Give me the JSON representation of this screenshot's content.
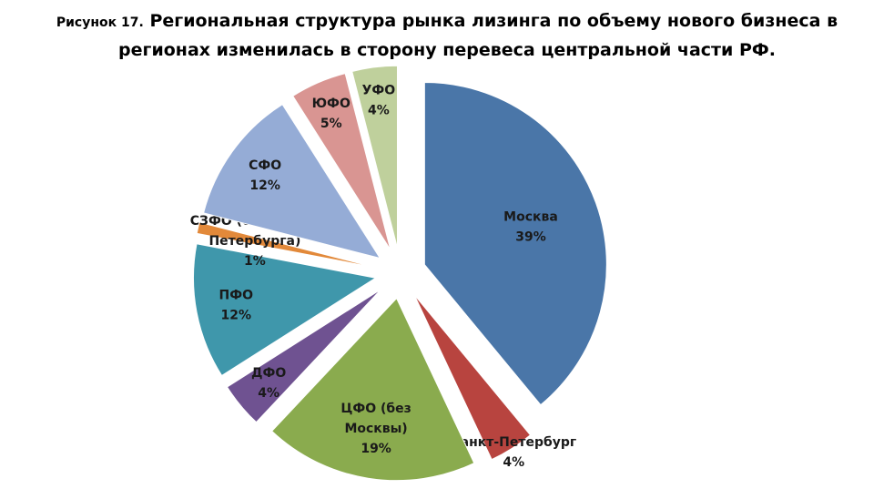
{
  "figure": {
    "prefix": "Рисунок 17.",
    "title_line1": "Региональная структура рынка лизинга по объему нового бизнеса в",
    "title_line2": "регионах изменилась в сторону перевеса центральной части РФ."
  },
  "chart_data": {
    "type": "pie",
    "exploded": true,
    "slices": [
      {
        "label": "Москва",
        "value": 39,
        "value_text": "39%",
        "color": "#4a76a8"
      },
      {
        "label": "Санкт-Петербург",
        "value": 4,
        "value_text": "4%",
        "color": "#b8443f"
      },
      {
        "label": "ЦФО (без Москвы)",
        "value": 19,
        "value_text": "19%",
        "color": "#8aab4e"
      },
      {
        "label": "ДФО",
        "value": 4,
        "value_text": "4%",
        "color": "#6f5291"
      },
      {
        "label": "ПФО",
        "value": 12,
        "value_text": "12%",
        "color": "#3f97ab"
      },
      {
        "label": "СЗФО (без Санкт-Петербурга)",
        "value": 1,
        "value_text": "1%",
        "color": "#e2893a"
      },
      {
        "label": "СФО",
        "value": 12,
        "value_text": "12%",
        "color": "#95acd6"
      },
      {
        "label": "ЮФО",
        "value": 5,
        "value_text": "5%",
        "color": "#d99592"
      },
      {
        "label": "УФО",
        "value": 4,
        "value_text": "4%",
        "color": "#bfd09c"
      }
    ]
  }
}
